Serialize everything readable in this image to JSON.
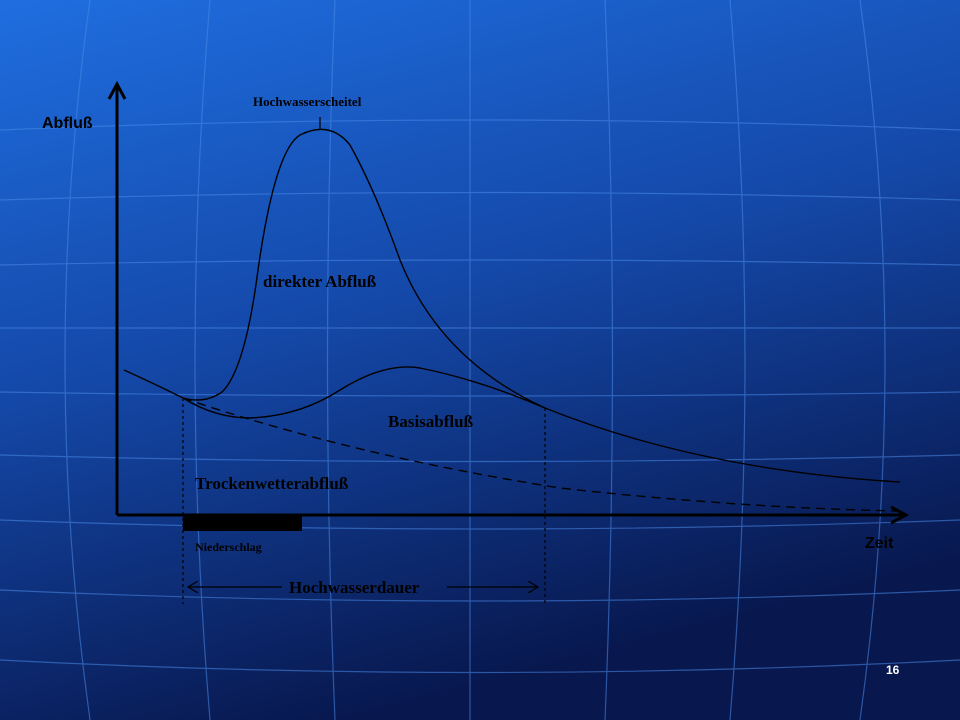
{
  "axes": {
    "y_label": "Abfluß",
    "x_label": "Zeit"
  },
  "labels": {
    "peak": "Hochwasserscheitel",
    "direct_runoff": "direkter Abfluß",
    "base_flow": "Basisabfluß",
    "dry_weather_flow": "Trockenwetterabfluß",
    "precipitation": "Niederschlag",
    "flood_duration": "Hochwasserdauer"
  },
  "page_number": "16"
}
